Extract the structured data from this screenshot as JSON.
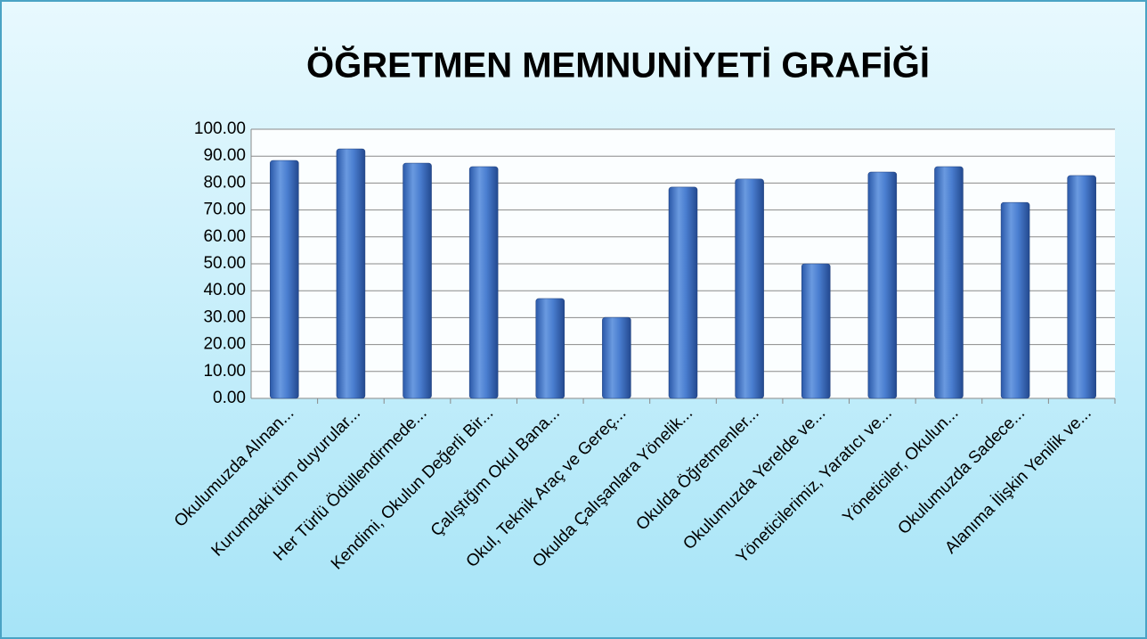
{
  "chart_data": {
    "type": "bar",
    "title": "ÖĞRETMEN MEMNUNİYETİ GRAFİĞİ",
    "categories": [
      "Okulumuzda Alınan...",
      "Kurumdaki tüm duyurular...",
      "Her Türlü Ödüllendirmede...",
      "Kendimi, Okulun Değerli Bir...",
      "Çalıştığım Okul Bana...",
      "Okul, Teknik Araç ve Gereç...",
      "Okulda Çalışanlara Yönelik...",
      "Okulda Öğretmenler...",
      "Okulumuzda Yerelde ve...",
      "Yöneticilerimiz, Yaratıcı ve...",
      "Yöneticiler, Okulun...",
      "Okulumuzda Sadece...",
      "Alanıma İlişkin Yenilik ve..."
    ],
    "values": [
      88.4,
      92.7,
      87.4,
      86.1,
      37.1,
      30.1,
      78.5,
      81.5,
      50,
      84.1,
      86.1,
      72.8,
      82.8
    ],
    "color": "#3a6fc4",
    "ylim": [
      0,
      100
    ],
    "yticks": [
      {
        "value": 0,
        "label": "0.00"
      },
      {
        "value": 10,
        "label": "10.00"
      },
      {
        "value": 20,
        "label": "20.00"
      },
      {
        "value": 30,
        "label": "30.00"
      },
      {
        "value": 40,
        "label": "40.00"
      },
      {
        "value": 50,
        "label": "50.00"
      },
      {
        "value": 60,
        "label": "60.00"
      },
      {
        "value": 70,
        "label": "70.00"
      },
      {
        "value": 80,
        "label": "80.00"
      },
      {
        "value": 90,
        "label": "90.00"
      },
      {
        "value": 100,
        "label": "100.00"
      }
    ],
    "grid": true
  }
}
